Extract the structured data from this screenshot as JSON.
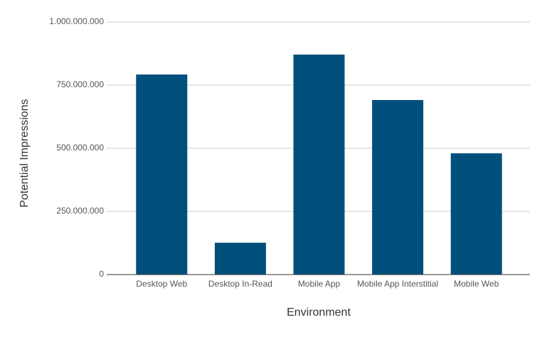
{
  "chart_data": {
    "type": "bar",
    "x_label": "Environment",
    "y_label": "Potential Impressions",
    "categories": [
      "Desktop Web",
      "Desktop In-Read",
      "Mobile App",
      "Mobile App Interstitial",
      "Mobile Web"
    ],
    "values": [
      792000000,
      126000000,
      871000000,
      691000000,
      480000000
    ],
    "color": "#01507b",
    "ylim": [
      0,
      1000000000
    ],
    "yticks": [
      0,
      {
        "value": 250000000,
        "label": "250.000.000"
      },
      {
        "value": 500000000,
        "label": "500.000.000"
      },
      {
        "value": 750000000,
        "label": "750.000.000"
      },
      {
        "value": 1000000000,
        "label": "1.000.000.000"
      }
    ],
    "grid": true
  }
}
